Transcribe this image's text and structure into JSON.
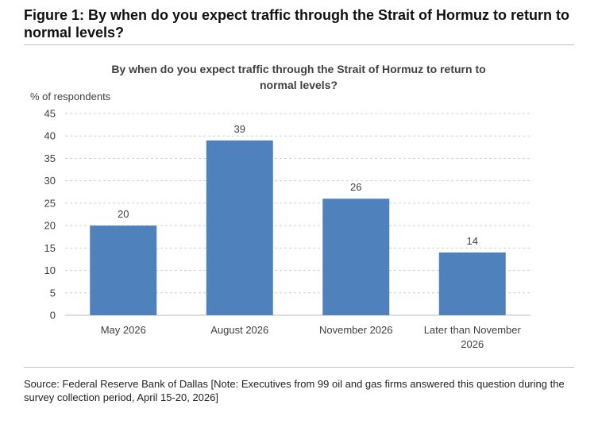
{
  "figure": {
    "title": "Figure 1: By when do you expect traffic through the Strait of Hormuz to return to normal levels?",
    "source": "Source: Federal Reserve Bank of Dallas [Note: Executives from 99 oil and gas firms answered this question during the survey collection period, April 15-20, 2026]"
  },
  "chart_data": {
    "type": "bar",
    "title_lines": [
      "By when do you expect traffic through the Strait of Hormuz to return to",
      "normal levels?"
    ],
    "ylabel": "% of respondents",
    "xlabel": "",
    "categories": [
      [
        "May 2026"
      ],
      [
        "August 2026"
      ],
      [
        "November 2026"
      ],
      [
        "Later than November",
        "2026"
      ]
    ],
    "values": [
      20,
      39,
      26,
      14
    ],
    "data_labels": [
      "20",
      "39",
      "26",
      "14"
    ],
    "ylim": [
      0,
      45
    ],
    "yticks": [
      "0",
      "5",
      "10",
      "15",
      "20",
      "25",
      "30",
      "35",
      "40",
      "45"
    ],
    "grid": true,
    "grid_style": "dashed",
    "legend": "none",
    "bar_color": "#4f81bd"
  }
}
